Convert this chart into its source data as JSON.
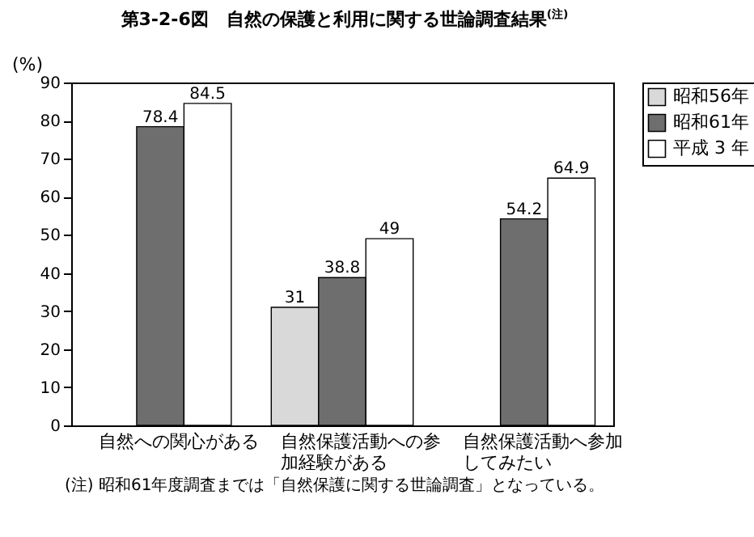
{
  "chart_data": {
    "type": "bar",
    "title": "第3-2-6図　自然の保護と利用に関する世論調査結果$^{(注)}$",
    "ylabel": "(%)",
    "categories": [
      "自然への関心がある",
      "自然保護活動への参加経験がある",
      "自然保護活動へ参加してみたい"
    ],
    "series": [
      {
        "name": "昭和56年",
        "color": "#d9d9d9",
        "values": [
          null,
          31,
          null
        ]
      },
      {
        "name": "昭和61年",
        "color": "#6e6e6e",
        "values": [
          78.4,
          38.8,
          54.2
        ]
      },
      {
        "name": "平成 3 年",
        "color": "#ffffff",
        "values": [
          84.5,
          49,
          64.9
        ]
      }
    ],
    "ylim": [
      0,
      90
    ],
    "yticks": [
      0,
      10,
      20,
      30,
      40,
      50,
      60,
      70,
      80,
      90
    ],
    "grid": false,
    "legend": "right",
    "data_labels": true,
    "annotations": [
      "(注) 昭和61年度調査までは「自然保護に関する世論調査」となっている。"
    ]
  }
}
